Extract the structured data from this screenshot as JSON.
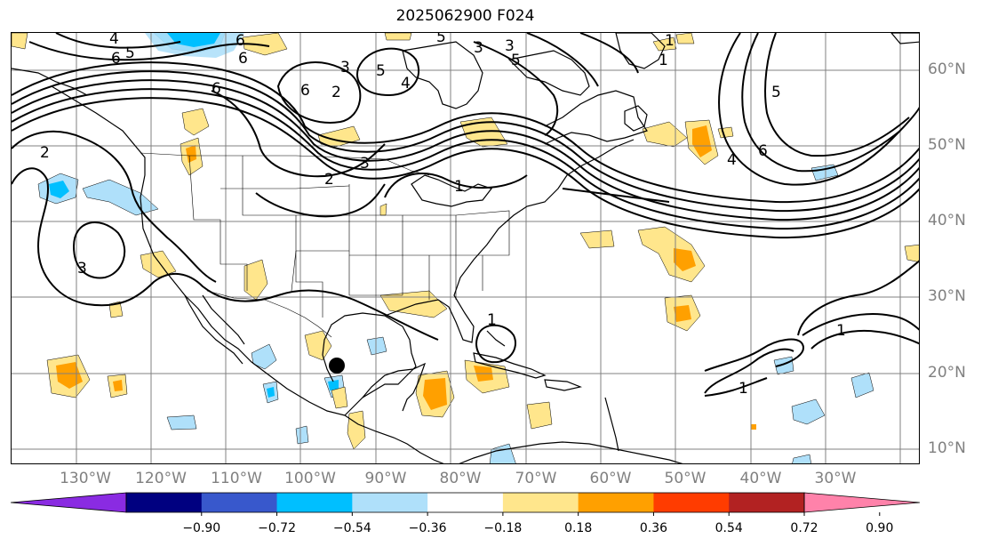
{
  "title": "2025062900 F024",
  "lon_labels": [
    "130°W",
    "120°W",
    "110°W",
    "100°W",
    "90°W",
    "80°W",
    "70°W",
    "60°W",
    "50°W",
    "40°W",
    "30°W"
  ],
  "lat_labels": [
    "60°N",
    "50°N",
    "40°N",
    "30°N",
    "20°N",
    "10°N"
  ],
  "colorbar": {
    "ticks": [
      "−0.90",
      "−0.72",
      "−0.54",
      "−0.36",
      "−0.18",
      "0.18",
      "0.36",
      "0.54",
      "0.72",
      "0.90"
    ],
    "colors": [
      "#8a2be2",
      "#000080",
      "#3858cc",
      "#00bfff",
      "#afe0fa",
      "#ffffff",
      "#ffe68c",
      "#ffa000",
      "#ff3c00",
      "#b22222",
      "#ff82aa"
    ]
  },
  "contour_labels": [
    "4",
    "6",
    "5",
    "6",
    "3",
    "5",
    "2",
    "6",
    "6",
    "5",
    "3",
    "6",
    "4",
    "5",
    "3",
    "1",
    "1",
    "2",
    "3",
    "3",
    "2",
    "1",
    "4",
    "6",
    "5",
    "1",
    "1",
    "1"
  ],
  "colors": {
    "contour": "#000000",
    "grid": "#808080",
    "frame": "#000000"
  }
}
